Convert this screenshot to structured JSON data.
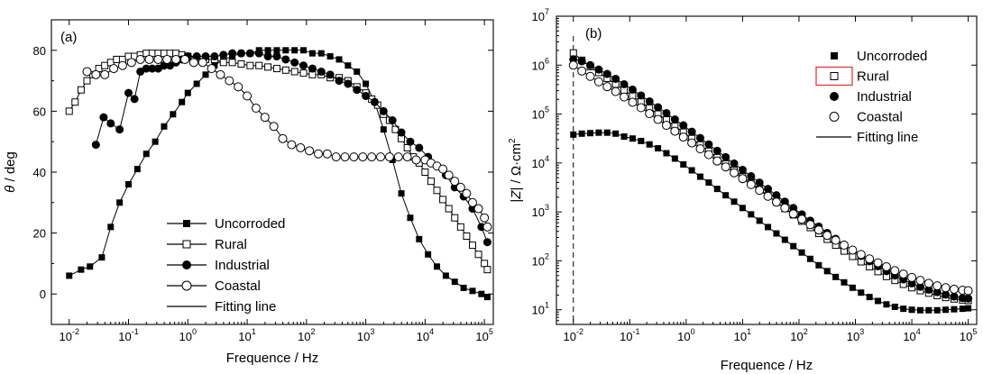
{
  "chart_data": [
    {
      "panel_label": "(a)",
      "type": "scatter",
      "xlabel": "Frequence / Hz",
      "ylabel_symbol": "θ",
      "ylabel_unit": " / deg",
      "xscale": "log",
      "xlim_log10": [
        -2.3,
        5.15
      ],
      "ylim": [
        -10,
        90
      ],
      "xticks": [
        {
          "base": "10",
          "exp": "-2",
          "log10": -2
        },
        {
          "base": "10",
          "exp": "-1",
          "log10": -1
        },
        {
          "base": "10",
          "exp": "0",
          "log10": 0
        },
        {
          "base": "10",
          "exp": "1",
          "log10": 1
        },
        {
          "base": "10",
          "exp": "2",
          "log10": 2
        },
        {
          "base": "10",
          "exp": "3",
          "log10": 3
        },
        {
          "base": "10",
          "exp": "4",
          "log10": 4
        },
        {
          "base": "10",
          "exp": "5",
          "log10": 5
        }
      ],
      "yticks": [
        "0",
        "20",
        "40",
        "60",
        "80"
      ],
      "grid": false,
      "legend_position": "bottom-center",
      "legend": [
        {
          "label": "Uncorroded",
          "marker": "square-filled"
        },
        {
          "label": "Rural",
          "marker": "square-open"
        },
        {
          "label": "Industrial",
          "marker": "circle-filled"
        },
        {
          "label": "Coastal",
          "marker": "circle-open"
        },
        {
          "label": "Fitting line",
          "marker": "line"
        }
      ],
      "series": [
        {
          "name": "Uncorroded",
          "marker": "square-filled",
          "log10_x": [
            -2,
            -1.8,
            -1.65,
            -1.45,
            -1.3,
            -1.15,
            -1.0,
            -0.85,
            -0.7,
            -0.55,
            -0.4,
            -0.25,
            -0.1,
            0.0,
            0.15,
            0.3,
            0.45,
            0.6,
            0.75,
            0.9,
            1.05,
            1.2,
            1.35,
            1.5,
            1.65,
            1.8,
            1.95,
            2.1,
            2.25,
            2.4,
            2.55,
            2.7,
            2.85,
            3.0,
            3.15,
            3.3,
            3.45,
            3.6,
            3.75,
            3.9,
            4.05,
            4.2,
            4.35,
            4.5,
            4.65,
            4.8,
            4.95,
            5.05
          ],
          "y": [
            6,
            8,
            9,
            12,
            22,
            30,
            36,
            41,
            46,
            50,
            55,
            59,
            63,
            66,
            69,
            72,
            75,
            77,
            78,
            79,
            79,
            80,
            80,
            80,
            80,
            80,
            80,
            79,
            79,
            78,
            77,
            75,
            73,
            69,
            63,
            54,
            44,
            33,
            25,
            18,
            13,
            9,
            6,
            4,
            2,
            1,
            0,
            -1
          ]
        },
        {
          "name": "Rural",
          "marker": "square-open",
          "log10_x": [
            -2,
            -1.9,
            -1.8,
            -1.7,
            -1.6,
            -1.5,
            -1.4,
            -1.3,
            -1.2,
            -1.1,
            -1.0,
            -0.9,
            -0.8,
            -0.7,
            -0.6,
            -0.5,
            -0.4,
            -0.3,
            -0.2,
            -0.1,
            0.0,
            0.15,
            0.3,
            0.45,
            0.6,
            0.75,
            0.9,
            1.05,
            1.2,
            1.35,
            1.5,
            1.65,
            1.8,
            1.95,
            2.1,
            2.25,
            2.4,
            2.55,
            2.7,
            2.85,
            3.0,
            3.1,
            3.2,
            3.3,
            3.4,
            3.5,
            3.6,
            3.7,
            3.8,
            3.9,
            4.0,
            4.1,
            4.2,
            4.3,
            4.4,
            4.5,
            4.6,
            4.7,
            4.8,
            4.9,
            5.0,
            5.05
          ],
          "y": [
            60,
            63,
            67,
            70,
            72,
            74,
            75,
            76,
            77,
            77,
            78,
            78,
            78.5,
            79,
            79,
            79,
            79,
            79,
            79,
            78.5,
            78,
            77.5,
            77,
            77,
            76,
            76,
            75.5,
            75,
            75,
            74.5,
            74,
            73.5,
            73,
            72.5,
            72,
            72,
            71,
            71,
            70,
            68,
            66,
            64,
            62,
            59,
            57,
            54,
            51,
            48,
            45,
            43,
            40,
            37,
            34,
            31,
            28,
            25,
            22,
            19,
            16,
            13,
            10,
            8
          ]
        },
        {
          "name": "Industrial",
          "marker": "circle-filled",
          "log10_x": [
            -1.55,
            -1.42,
            -1.3,
            -1.15,
            -1.0,
            -0.9,
            -0.8,
            -0.7,
            -0.6,
            -0.5,
            -0.4,
            -0.3,
            -0.2,
            -0.1,
            0.0,
            0.15,
            0.3,
            0.45,
            0.6,
            0.75,
            0.9,
            1.05,
            1.2,
            1.35,
            1.5,
            1.65,
            1.8,
            1.95,
            2.1,
            2.25,
            2.4,
            2.55,
            2.7,
            2.85,
            3.0,
            3.15,
            3.3,
            3.45,
            3.6,
            3.75,
            3.9,
            4.05,
            4.2,
            4.35,
            4.5,
            4.65,
            4.8,
            4.95,
            5.05
          ],
          "y": [
            49,
            58,
            56,
            54,
            66,
            64,
            73,
            74,
            74,
            74,
            75,
            75,
            76,
            77,
            78,
            78,
            78,
            78,
            78.5,
            79,
            79,
            79,
            79,
            78,
            78,
            77,
            76,
            75,
            74,
            73,
            72,
            70,
            69,
            67,
            65,
            63,
            60,
            57,
            53,
            50,
            48,
            45,
            42,
            39,
            35,
            32,
            28,
            22,
            17
          ]
        },
        {
          "name": "Coastal",
          "marker": "circle-open",
          "log10_x": [
            -1.7,
            -1.55,
            -1.4,
            -1.25,
            -1.1,
            -0.95,
            -0.8,
            -0.65,
            -0.5,
            -0.35,
            -0.2,
            -0.05,
            0.1,
            0.25,
            0.4,
            0.55,
            0.7,
            0.85,
            1.0,
            1.15,
            1.3,
            1.45,
            1.6,
            1.75,
            1.9,
            2.05,
            2.2,
            2.35,
            2.5,
            2.65,
            2.8,
            2.95,
            3.1,
            3.25,
            3.4,
            3.55,
            3.7,
            3.85,
            4.0,
            4.1,
            4.2,
            4.3,
            4.4,
            4.5,
            4.6,
            4.7,
            4.8,
            4.9,
            5.0,
            5.05
          ],
          "y": [
            73,
            72,
            72,
            74,
            75,
            76,
            77,
            77,
            77,
            77,
            77,
            77,
            76,
            76,
            74,
            72,
            70,
            68,
            65,
            61,
            58,
            55,
            51,
            49,
            48,
            47,
            46,
            46,
            45,
            45,
            45,
            45,
            45,
            45,
            45,
            45,
            45,
            44,
            44,
            43,
            42,
            41,
            39,
            37,
            35,
            33,
            30,
            28,
            25,
            22
          ]
        }
      ]
    },
    {
      "panel_label": "(b)",
      "type": "scatter",
      "xlabel": "Frequence / Hz",
      "ylabel_pre": "|",
      "ylabel_symbol": "Z",
      "ylabel_mid": "| / Ω·cm",
      "ylabel_sup": "2",
      "xscale": "log",
      "yscale": "log",
      "xlim_log10": [
        -2.3,
        5.15
      ],
      "ylim_log10": [
        0.7,
        7
      ],
      "xticks": [
        {
          "base": "10",
          "exp": "-2",
          "log10": -2
        },
        {
          "base": "10",
          "exp": "-1",
          "log10": -1
        },
        {
          "base": "10",
          "exp": "0",
          "log10": 0
        },
        {
          "base": "10",
          "exp": "1",
          "log10": 1
        },
        {
          "base": "10",
          "exp": "2",
          "log10": 2
        },
        {
          "base": "10",
          "exp": "3",
          "log10": 3
        },
        {
          "base": "10",
          "exp": "4",
          "log10": 4
        },
        {
          "base": "10",
          "exp": "5",
          "log10": 5
        }
      ],
      "yticks": [
        {
          "base": "10",
          "exp": "1",
          "log10": 1
        },
        {
          "base": "10",
          "exp": "2",
          "log10": 2
        },
        {
          "base": "10",
          "exp": "3",
          "log10": 3
        },
        {
          "base": "10",
          "exp": "4",
          "log10": 4
        },
        {
          "base": "10",
          "exp": "5",
          "log10": 5
        },
        {
          "base": "10",
          "exp": "6",
          "log10": 6
        },
        {
          "base": "10",
          "exp": "7",
          "log10": 7
        }
      ],
      "dashed_vertical_at_log10_x": -2,
      "grid": false,
      "legend_position": "top-right",
      "highlighted_legend_entry": "Rural",
      "highlight_color": "#e53935",
      "legend": [
        {
          "label": "Uncorroded",
          "marker": "square-filled"
        },
        {
          "label": "Rural",
          "marker": "square-open"
        },
        {
          "label": "Industrial",
          "marker": "circle-filled"
        },
        {
          "label": "Coastal",
          "marker": "circle-open"
        },
        {
          "label": "Fitting line",
          "marker": "line"
        }
      ],
      "series": [
        {
          "name": "Uncorroded",
          "marker": "square-filled",
          "log10_x": [
            -2,
            -1.85,
            -1.7,
            -1.55,
            -1.4,
            -1.25,
            -1.1,
            -0.95,
            -0.8,
            -0.65,
            -0.5,
            -0.35,
            -0.2,
            -0.05,
            0.1,
            0.25,
            0.4,
            0.55,
            0.7,
            0.85,
            1.0,
            1.15,
            1.3,
            1.45,
            1.6,
            1.75,
            1.9,
            2.05,
            2.2,
            2.35,
            2.5,
            2.65,
            2.8,
            2.95,
            3.1,
            3.25,
            3.4,
            3.55,
            3.7,
            3.85,
            4.0,
            4.15,
            4.3,
            4.45,
            4.6,
            4.75,
            4.9,
            5.0
          ],
          "log10_y": [
            4.58,
            4.6,
            4.61,
            4.62,
            4.62,
            4.6,
            4.54,
            4.5,
            4.45,
            4.38,
            4.3,
            4.2,
            4.09,
            3.97,
            3.85,
            3.72,
            3.6,
            3.47,
            3.34,
            3.21,
            3.08,
            2.95,
            2.82,
            2.69,
            2.56,
            2.43,
            2.3,
            2.17,
            2.04,
            1.91,
            1.79,
            1.67,
            1.56,
            1.45,
            1.35,
            1.26,
            1.18,
            1.11,
            1.06,
            1.02,
            1.0,
            0.99,
            0.99,
            0.99,
            1.0,
            1.01,
            1.02,
            1.03
          ]
        },
        {
          "name": "Rural",
          "marker": "square-open",
          "log10_x": [
            -2,
            -1.85,
            -1.7,
            -1.55,
            -1.4,
            -1.25,
            -1.1,
            -0.95,
            -0.8,
            -0.65,
            -0.5,
            -0.35,
            -0.2,
            -0.05,
            0.1,
            0.25,
            0.4,
            0.55,
            0.7,
            0.85,
            1.0,
            1.15,
            1.3,
            1.45,
            1.6,
            1.75,
            1.9,
            2.05,
            2.2,
            2.35,
            2.5,
            2.65,
            2.8,
            2.95,
            3.1,
            3.25,
            3.4,
            3.55,
            3.7,
            3.85,
            4.0,
            4.15,
            4.3,
            4.45,
            4.6,
            4.75,
            4.9,
            5.0
          ],
          "log10_y": [
            6.25,
            6.1,
            5.97,
            5.85,
            5.73,
            5.61,
            5.49,
            5.37,
            5.25,
            5.12,
            5.0,
            4.88,
            4.75,
            4.63,
            4.5,
            4.37,
            4.24,
            4.11,
            3.98,
            3.85,
            3.72,
            3.59,
            3.46,
            3.33,
            3.2,
            3.07,
            2.94,
            2.81,
            2.68,
            2.56,
            2.44,
            2.32,
            2.2,
            2.09,
            1.98,
            1.88,
            1.78,
            1.68,
            1.6,
            1.52,
            1.45,
            1.39,
            1.34,
            1.29,
            1.25,
            1.22,
            1.2,
            1.19
          ]
        },
        {
          "name": "Industrial",
          "marker": "circle-filled",
          "log10_x": [
            -2,
            -1.85,
            -1.7,
            -1.55,
            -1.4,
            -1.25,
            -1.1,
            -0.95,
            -0.8,
            -0.65,
            -0.5,
            -0.35,
            -0.2,
            -0.05,
            0.1,
            0.25,
            0.4,
            0.55,
            0.7,
            0.85,
            1.0,
            1.15,
            1.3,
            1.45,
            1.6,
            1.75,
            1.9,
            2.05,
            2.2,
            2.35,
            2.5,
            2.65,
            2.8,
            2.95,
            3.1,
            3.25,
            3.4,
            3.55,
            3.7,
            3.85,
            4.0,
            4.15,
            4.3,
            4.45,
            4.6,
            4.75,
            4.9,
            5.0
          ],
          "log10_y": [
            6.12,
            6.08,
            6.0,
            5.91,
            5.82,
            5.72,
            5.61,
            5.5,
            5.38,
            5.26,
            5.14,
            5.02,
            4.89,
            4.77,
            4.64,
            4.51,
            4.38,
            4.25,
            4.12,
            3.99,
            3.86,
            3.73,
            3.6,
            3.47,
            3.34,
            3.21,
            3.08,
            2.95,
            2.82,
            2.7,
            2.57,
            2.45,
            2.33,
            2.21,
            2.1,
            1.99,
            1.89,
            1.79,
            1.7,
            1.62,
            1.54,
            1.47,
            1.41,
            1.36,
            1.31,
            1.27,
            1.24,
            1.23
          ]
        },
        {
          "name": "Coastal",
          "marker": "circle-open",
          "log10_x": [
            -2,
            -1.85,
            -1.7,
            -1.55,
            -1.4,
            -1.25,
            -1.1,
            -0.95,
            -0.8,
            -0.65,
            -0.5,
            -0.35,
            -0.2,
            -0.05,
            0.1,
            0.25,
            0.4,
            0.55,
            0.7,
            0.85,
            1.0,
            1.15,
            1.3,
            1.45,
            1.6,
            1.75,
            1.9,
            2.05,
            2.2,
            2.35,
            2.5,
            2.65,
            2.8,
            2.95,
            3.1,
            3.25,
            3.4,
            3.55,
            3.7,
            3.85,
            4.0,
            4.15,
            4.3,
            4.45,
            4.6,
            4.75,
            4.9,
            5.0
          ],
          "log10_y": [
            6.0,
            5.88,
            5.77,
            5.66,
            5.56,
            5.46,
            5.35,
            5.24,
            5.13,
            5.01,
            4.89,
            4.77,
            4.65,
            4.53,
            4.41,
            4.29,
            4.17,
            4.04,
            3.92,
            3.8,
            3.68,
            3.56,
            3.44,
            3.32,
            3.2,
            3.08,
            2.96,
            2.85,
            2.74,
            2.63,
            2.52,
            2.42,
            2.32,
            2.22,
            2.13,
            2.04,
            1.96,
            1.88,
            1.8,
            1.73,
            1.66,
            1.6,
            1.54,
            1.49,
            1.45,
            1.42,
            1.4,
            1.39
          ]
        }
      ]
    }
  ]
}
